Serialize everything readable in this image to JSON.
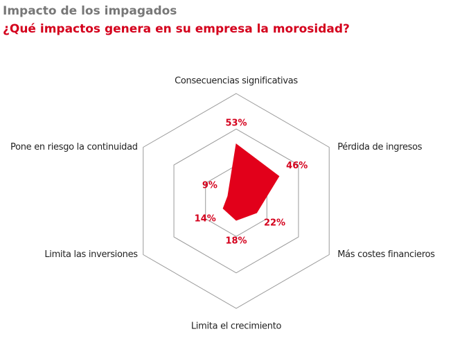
{
  "chart_data": {
    "type": "radar",
    "title": "Impacto de los impagados",
    "subtitle": "¿Qué impactos genera en su empresa la morosidad?",
    "categories": [
      "Consecuencias significativas",
      "Pérdida de ingresos",
      "Más costes financieros",
      "Limita el crecimiento",
      "Limita las inversiones",
      "Pone en riesgo la continuidad"
    ],
    "values": [
      53,
      46,
      22,
      18,
      14,
      9
    ],
    "value_labels": [
      "53%",
      "46%",
      "22%",
      "18%",
      "14%",
      "9%"
    ],
    "color": "#e2001a",
    "rlim": [
      0,
      100
    ],
    "rticks": [
      33,
      67,
      100
    ],
    "grid": true
  }
}
